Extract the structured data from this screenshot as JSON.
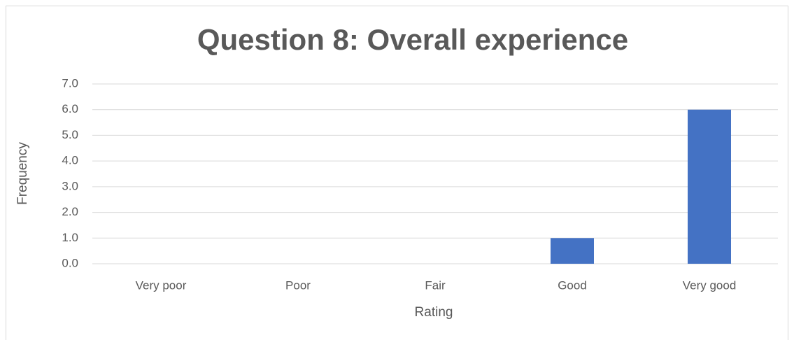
{
  "chart_data": {
    "type": "bar",
    "title": "Question 8: Overall experience",
    "x_label": "Rating",
    "y_label": "Frequency",
    "categories": [
      "Very poor",
      "Poor",
      "Fair",
      "Good",
      "Very good"
    ],
    "values": [
      0,
      0,
      0,
      1,
      6
    ],
    "color": "#4472c4",
    "ylim": [
      0,
      7
    ],
    "yticks": [
      {
        "value": 0,
        "label": "0.0"
      },
      {
        "value": 1,
        "label": "1.0"
      },
      {
        "value": 2,
        "label": "2.0"
      },
      {
        "value": 3,
        "label": "3.0"
      },
      {
        "value": 4,
        "label": "4.0"
      },
      {
        "value": 5,
        "label": "5.0"
      },
      {
        "value": 6,
        "label": "6.0"
      },
      {
        "value": 7,
        "label": "7.0"
      }
    ],
    "grid": true
  }
}
